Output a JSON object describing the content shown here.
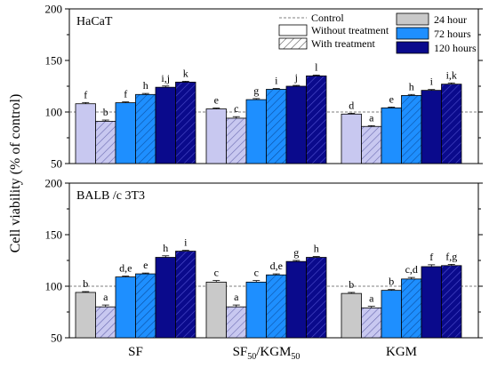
{
  "chart_data": {
    "type": "bar",
    "ylabel": "Cell viability (% of control)",
    "yticks": [
      50,
      100,
      150,
      200
    ],
    "ylim": [
      50,
      200
    ],
    "categories": [
      "SF",
      "SF50/KGM50",
      "KGM"
    ],
    "category_labels": [
      {
        "base": "SF",
        "sub1": "",
        "mid": "",
        "sub2": ""
      },
      {
        "base": "SF",
        "sub1": "50",
        "mid": "/KGM",
        "sub2": "50"
      },
      {
        "base": "KGM",
        "sub1": "",
        "mid": "",
        "sub2": ""
      }
    ],
    "control_line": 100,
    "legend": {
      "control": "Control",
      "without": "Without treatment",
      "with": "With treatment",
      "h24": "24 hour",
      "h72": "72 hours",
      "h120": "120 hours"
    },
    "colors": {
      "h24_without": "#c9c9c9",
      "h24_without_haca": "#c8c8f0",
      "h24_with": "#c8c8f0",
      "h72": "#1e8fff",
      "h120": "#0a0a8c"
    },
    "bar_order": [
      {
        "time": "h24",
        "treatment": "without"
      },
      {
        "time": "h24",
        "treatment": "with"
      },
      {
        "time": "h72",
        "treatment": "without"
      },
      {
        "time": "h72",
        "treatment": "with"
      },
      {
        "time": "h120",
        "treatment": "without"
      },
      {
        "time": "h120",
        "treatment": "with"
      }
    ],
    "panels": [
      {
        "name": "HaCaT",
        "h24_without_color": "#c8c8f0",
        "groups": [
          {
            "values": [
              108,
              91,
              109,
              117,
              124,
              129
            ],
            "errors": [
              1.2,
              1.2,
              0.8,
              1.0,
              1.2,
              0.8
            ],
            "labels": [
              "f",
              "b",
              "f",
              "h",
              "i,j",
              "k"
            ]
          },
          {
            "values": [
              103,
              94,
              112,
              122,
              125,
              135
            ],
            "errors": [
              0.8,
              1.5,
              1.0,
              0.8,
              0.8,
              0.8
            ],
            "labels": [
              "e",
              "c",
              "g",
              "i",
              "j",
              "l"
            ]
          },
          {
            "values": [
              98,
              86,
              104,
              116,
              121,
              127
            ],
            "errors": [
              0.8,
              0.8,
              0.8,
              1.0,
              0.8,
              1.2
            ],
            "labels": [
              "d",
              "a",
              "e",
              "h",
              "i",
              "i,k"
            ]
          }
        ]
      },
      {
        "name": "BALB /c 3T3",
        "h24_without_color": "#c9c9c9",
        "groups": [
          {
            "values": [
              94,
              80,
              109,
              112,
              128,
              134
            ],
            "errors": [
              0.8,
              1.8,
              0.8,
              0.8,
              1.5,
              0.8
            ],
            "labels": [
              "b",
              "a",
              "d,e",
              "e",
              "h",
              "i"
            ]
          },
          {
            "values": [
              104,
              80,
              104,
              111,
              124,
              128
            ],
            "errors": [
              1.5,
              1.8,
              1.5,
              1.0,
              1.0,
              0.8
            ],
            "labels": [
              "c",
              "a",
              "c",
              "d,e",
              "g",
              "h"
            ]
          },
          {
            "values": [
              93,
              79,
              96,
              107,
              119,
              120
            ],
            "errors": [
              1.0,
              1.5,
              0.8,
              1.5,
              1.8,
              1.2
            ],
            "labels": [
              "b",
              "a",
              "b",
              "c,d",
              "f",
              "f,g"
            ]
          }
        ]
      }
    ]
  }
}
